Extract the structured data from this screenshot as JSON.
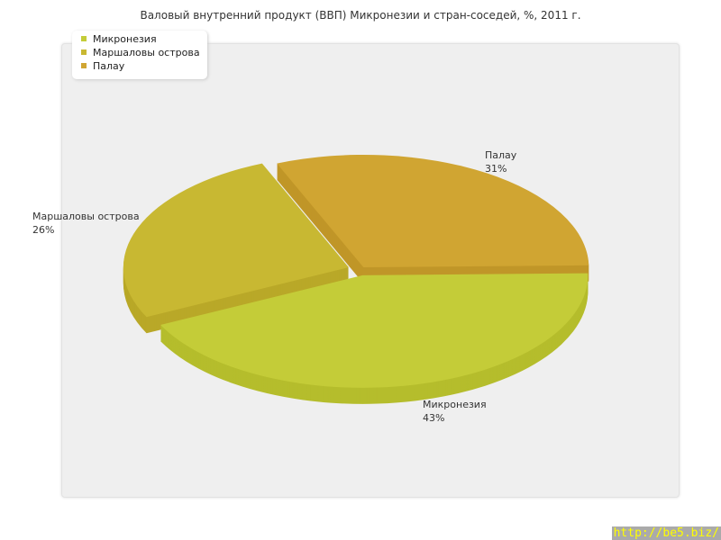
{
  "chart_data": {
    "type": "pie",
    "title": "Валовый внутренний продукт (ВВП) Микронезии и стран-соседей, %, 2011 г.",
    "categories": [
      "Микронезия",
      "Маршаловы острова",
      "Палау"
    ],
    "values": [
      43,
      26,
      31
    ],
    "labels": [
      "43%",
      "26%",
      "31%"
    ],
    "colors": [
      "#c4cc38",
      "#c8b832",
      "#d0a532"
    ],
    "side_colors": [
      "#b5bd2c",
      "#b9a828",
      "#c09628"
    ],
    "legend_placement": "top-left",
    "three_d": true
  },
  "watermark": "http://be5.biz/"
}
